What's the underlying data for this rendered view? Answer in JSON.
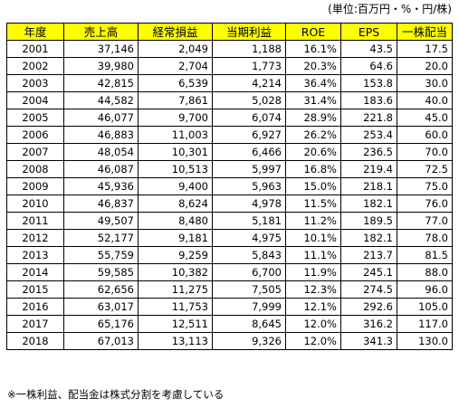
{
  "unit_label": "(単位:百万円・%・円/株)",
  "headers": [
    "年度",
    "売上高",
    "経常損益",
    "当期利益",
    "ROE",
    "EPS",
    "一株配当"
  ],
  "rows": [
    [
      "2001",
      "37,146",
      "2,049",
      "1,188",
      "16.1%",
      "43.5",
      "17.5"
    ],
    [
      "2002",
      "39,980",
      "2,704",
      "1,773",
      "20.3%",
      "64.6",
      "20.0"
    ],
    [
      "2003",
      "42,815",
      "6,539",
      "4,214",
      "36.4%",
      "153.8",
      "30.0"
    ],
    [
      "2004",
      "44,582",
      "7,861",
      "5,028",
      "31.4%",
      "183.6",
      "40.0"
    ],
    [
      "2005",
      "46,077",
      "9,700",
      "6,074",
      "28.9%",
      "221.8",
      "45.0"
    ],
    [
      "2006",
      "46,883",
      "11,003",
      "6,927",
      "26.2%",
      "253.4",
      "60.0"
    ],
    [
      "2007",
      "48,054",
      "10,301",
      "6,466",
      "20.6%",
      "236.5",
      "70.0"
    ],
    [
      "2008",
      "46,087",
      "10,513",
      "5,997",
      "16.8%",
      "219.4",
      "72.5"
    ],
    [
      "2009",
      "45,936",
      "9,400",
      "5,963",
      "15.0%",
      "218.1",
      "75.0"
    ],
    [
      "2010",
      "46,837",
      "8,624",
      "4,978",
      "11.5%",
      "182.1",
      "76.0"
    ],
    [
      "2011",
      "49,507",
      "8,480",
      "5,181",
      "11.2%",
      "189.5",
      "77.0"
    ],
    [
      "2012",
      "52,177",
      "9,181",
      "4,975",
      "10.1%",
      "182.1",
      "78.0"
    ],
    [
      "2013",
      "55,759",
      "9,259",
      "5,843",
      "11.1%",
      "213.7",
      "81.5"
    ],
    [
      "2014",
      "59,585",
      "10,382",
      "6,700",
      "11.9%",
      "245.1",
      "88.0"
    ],
    [
      "2015",
      "62,656",
      "11,275",
      "7,505",
      "12.3%",
      "274.5",
      "96.0"
    ],
    [
      "2016",
      "63,017",
      "11,753",
      "7,999",
      "12.1%",
      "292.6",
      "105.0"
    ],
    [
      "2017",
      "65,176",
      "12,511",
      "8,645",
      "12.0%",
      "316.2",
      "117.0"
    ],
    [
      "2018",
      "67,013",
      "13,113",
      "9,326",
      "12.0%",
      "341.3",
      "130.0"
    ]
  ],
  "footnote": "※一株利益、配当金は株式分割を考慮している"
}
